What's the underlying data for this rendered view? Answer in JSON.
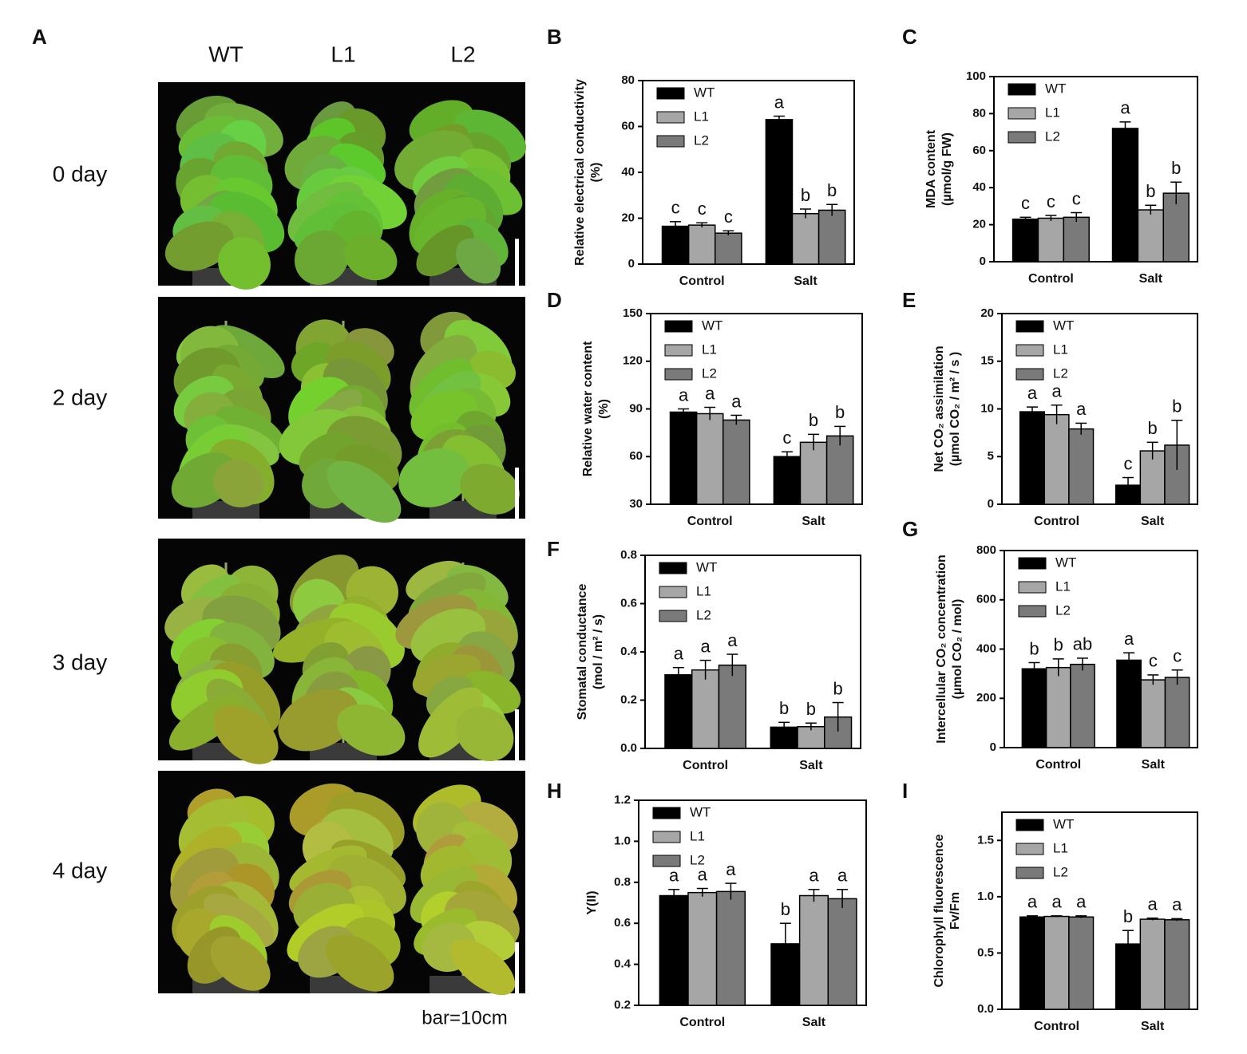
{
  "figure": {
    "panel_a": {
      "label": "A",
      "columns": [
        "WT",
        "L1",
        "L2"
      ],
      "rows": [
        "0 day",
        "2 day",
        "3 day",
        "4 day"
      ],
      "scale_note": "bar=10cm"
    }
  },
  "chart_data": [
    {
      "type": "bar",
      "label": "B",
      "ylabel": [
        "Relative electrical conductivity",
        "(%)"
      ],
      "categories": [
        "Control",
        "Salt"
      ],
      "ylim": [
        0,
        80
      ],
      "yticks": [
        0,
        20,
        40,
        60,
        80
      ],
      "series": [
        {
          "name": "WT",
          "color": "#000000",
          "values": [
            16.5,
            63
          ],
          "errors": [
            2,
            1.5
          ],
          "letters": [
            "c",
            "a"
          ]
        },
        {
          "name": "L1",
          "color": "#a6a6a6",
          "values": [
            17,
            22
          ],
          "errors": [
            1,
            2
          ],
          "letters": [
            "c",
            "b"
          ]
        },
        {
          "name": "L2",
          "color": "#7a7a7a",
          "values": [
            13.5,
            23.5
          ],
          "errors": [
            1,
            2.5
          ],
          "letters": [
            "c",
            "b"
          ]
        }
      ]
    },
    {
      "type": "bar",
      "label": "C",
      "ylabel": [
        "MDA content",
        "(µmol/g FW)"
      ],
      "categories": [
        "Control",
        "Salt"
      ],
      "ylim": [
        0,
        100
      ],
      "yticks": [
        0,
        20,
        40,
        60,
        80,
        100
      ],
      "series": [
        {
          "name": "WT",
          "color": "#000000",
          "values": [
            23,
            72
          ],
          "errors": [
            1,
            3.5
          ],
          "letters": [
            "c",
            "a"
          ]
        },
        {
          "name": "L1",
          "color": "#a6a6a6",
          "values": [
            23.5,
            28
          ],
          "errors": [
            1.5,
            2.5
          ],
          "letters": [
            "c",
            "b"
          ]
        },
        {
          "name": "L2",
          "color": "#7a7a7a",
          "values": [
            24,
            37
          ],
          "errors": [
            2.5,
            6
          ],
          "letters": [
            "c",
            "b"
          ]
        }
      ]
    },
    {
      "type": "bar",
      "label": "D",
      "ylabel": [
        "Relative water content",
        "(%)"
      ],
      "categories": [
        "Control",
        "Salt"
      ],
      "ylim": [
        30,
        150
      ],
      "yticks": [
        30,
        60,
        90,
        120,
        150
      ],
      "series": [
        {
          "name": "WT",
          "color": "#000000",
          "values": [
            88,
            60
          ],
          "errors": [
            2,
            3
          ],
          "letters": [
            "a",
            "c"
          ]
        },
        {
          "name": "L1",
          "color": "#a6a6a6",
          "values": [
            87,
            69
          ],
          "errors": [
            4,
            5
          ],
          "letters": [
            "a",
            "b"
          ]
        },
        {
          "name": "L2",
          "color": "#7a7a7a",
          "values": [
            83,
            73
          ],
          "errors": [
            3,
            6
          ],
          "letters": [
            "a",
            "b"
          ]
        }
      ]
    },
    {
      "type": "bar",
      "label": "E",
      "ylabel": [
        "Net CO₂ assimilation",
        "(µmol CO₂ / m² / s )"
      ],
      "categories": [
        "Control",
        "Salt"
      ],
      "ylim": [
        0,
        20
      ],
      "yticks": [
        0,
        5,
        10,
        15,
        20
      ],
      "series": [
        {
          "name": "WT",
          "color": "#000000",
          "values": [
            9.7,
            2
          ],
          "errors": [
            0.5,
            0.8
          ],
          "letters": [
            "a",
            "c"
          ]
        },
        {
          "name": "L1",
          "color": "#a6a6a6",
          "values": [
            9.4,
            5.6
          ],
          "errors": [
            1,
            0.9
          ],
          "letters": [
            "a",
            "b"
          ]
        },
        {
          "name": "L2",
          "color": "#7a7a7a",
          "values": [
            7.9,
            6.2
          ],
          "errors": [
            0.6,
            2.6
          ],
          "letters": [
            "a",
            "b"
          ]
        }
      ]
    },
    {
      "type": "bar",
      "label": "F",
      "ylabel": [
        "Stomatal conductance",
        "(mol / m² / s)"
      ],
      "categories": [
        "Control",
        "Salt"
      ],
      "ylim": [
        0,
        0.8
      ],
      "yticks": [
        {
          "value": 0,
          "label": "0.0"
        },
        0.2,
        0.4,
        0.6,
        0.8
      ],
      "series": [
        {
          "name": "WT",
          "color": "#000000",
          "values": [
            0.305,
            0.088
          ],
          "errors": [
            0.03,
            0.02
          ],
          "letters": [
            "a",
            "b"
          ]
        },
        {
          "name": "L1",
          "color": "#a6a6a6",
          "values": [
            0.325,
            0.09
          ],
          "errors": [
            0.04,
            0.015
          ],
          "letters": [
            "a",
            "b"
          ]
        },
        {
          "name": "L2",
          "color": "#7a7a7a",
          "values": [
            0.345,
            0.13
          ],
          "errors": [
            0.045,
            0.06
          ],
          "letters": [
            "a",
            "b"
          ]
        }
      ]
    },
    {
      "type": "bar",
      "label": "G",
      "ylabel": [
        "Intercellular CO₂ concentration",
        "(µmol CO₂ / mol)"
      ],
      "categories": [
        "Control",
        "Salt"
      ],
      "ylim": [
        0,
        800
      ],
      "yticks": [
        0,
        200,
        400,
        600,
        800
      ],
      "series": [
        {
          "name": "WT",
          "color": "#000000",
          "values": [
            320,
            355
          ],
          "errors": [
            25,
            30
          ],
          "letters": [
            "b",
            "a"
          ]
        },
        {
          "name": "L1",
          "color": "#a6a6a6",
          "values": [
            325,
            275
          ],
          "errors": [
            35,
            20
          ],
          "letters": [
            "b",
            "c"
          ]
        },
        {
          "name": "L2",
          "color": "#7a7a7a",
          "values": [
            338,
            285
          ],
          "errors": [
            25,
            30
          ],
          "letters": [
            "ab",
            "c"
          ]
        }
      ]
    },
    {
      "type": "bar",
      "label": "H",
      "ylabel": [
        "Y(II)"
      ],
      "categories": [
        "Control",
        "Salt"
      ],
      "ylim": [
        0.2,
        1.2
      ],
      "yticks": [
        0.2,
        0.4,
        0.6,
        0.8,
        {
          "value": 1,
          "label": "1.0"
        },
        1.2
      ],
      "series": [
        {
          "name": "WT",
          "color": "#000000",
          "values": [
            0.735,
            0.5
          ],
          "errors": [
            0.03,
            0.1
          ],
          "letters": [
            "a",
            "b"
          ]
        },
        {
          "name": "L1",
          "color": "#a6a6a6",
          "values": [
            0.75,
            0.735
          ],
          "errors": [
            0.02,
            0.03
          ],
          "letters": [
            "a",
            "a"
          ]
        },
        {
          "name": "L2",
          "color": "#7a7a7a",
          "values": [
            0.755,
            0.72
          ],
          "errors": [
            0.04,
            0.045
          ],
          "letters": [
            "a",
            "a"
          ]
        }
      ]
    },
    {
      "type": "bar",
      "label": "I",
      "ylabel": [
        "Chlorophyll fluorescence",
        "Fv/Fm"
      ],
      "categories": [
        "Control",
        "Salt"
      ],
      "ylim": [
        0,
        1.75
      ],
      "yticks": [
        {
          "value": 0,
          "label": "0.0"
        },
        0.5,
        {
          "value": 1,
          "label": "1.0"
        },
        1.5
      ],
      "series": [
        {
          "name": "WT",
          "color": "#000000",
          "values": [
            0.82,
            0.58
          ],
          "errors": [
            0.01,
            0.12
          ],
          "letters": [
            "a",
            "b"
          ]
        },
        {
          "name": "L1",
          "color": "#a6a6a6",
          "values": [
            0.825,
            0.8
          ],
          "errors": [
            0.005,
            0.01
          ],
          "letters": [
            "a",
            "a"
          ]
        },
        {
          "name": "L2",
          "color": "#7a7a7a",
          "values": [
            0.82,
            0.795
          ],
          "errors": [
            0.01,
            0.01
          ],
          "letters": [
            "a",
            "a"
          ]
        }
      ]
    }
  ]
}
